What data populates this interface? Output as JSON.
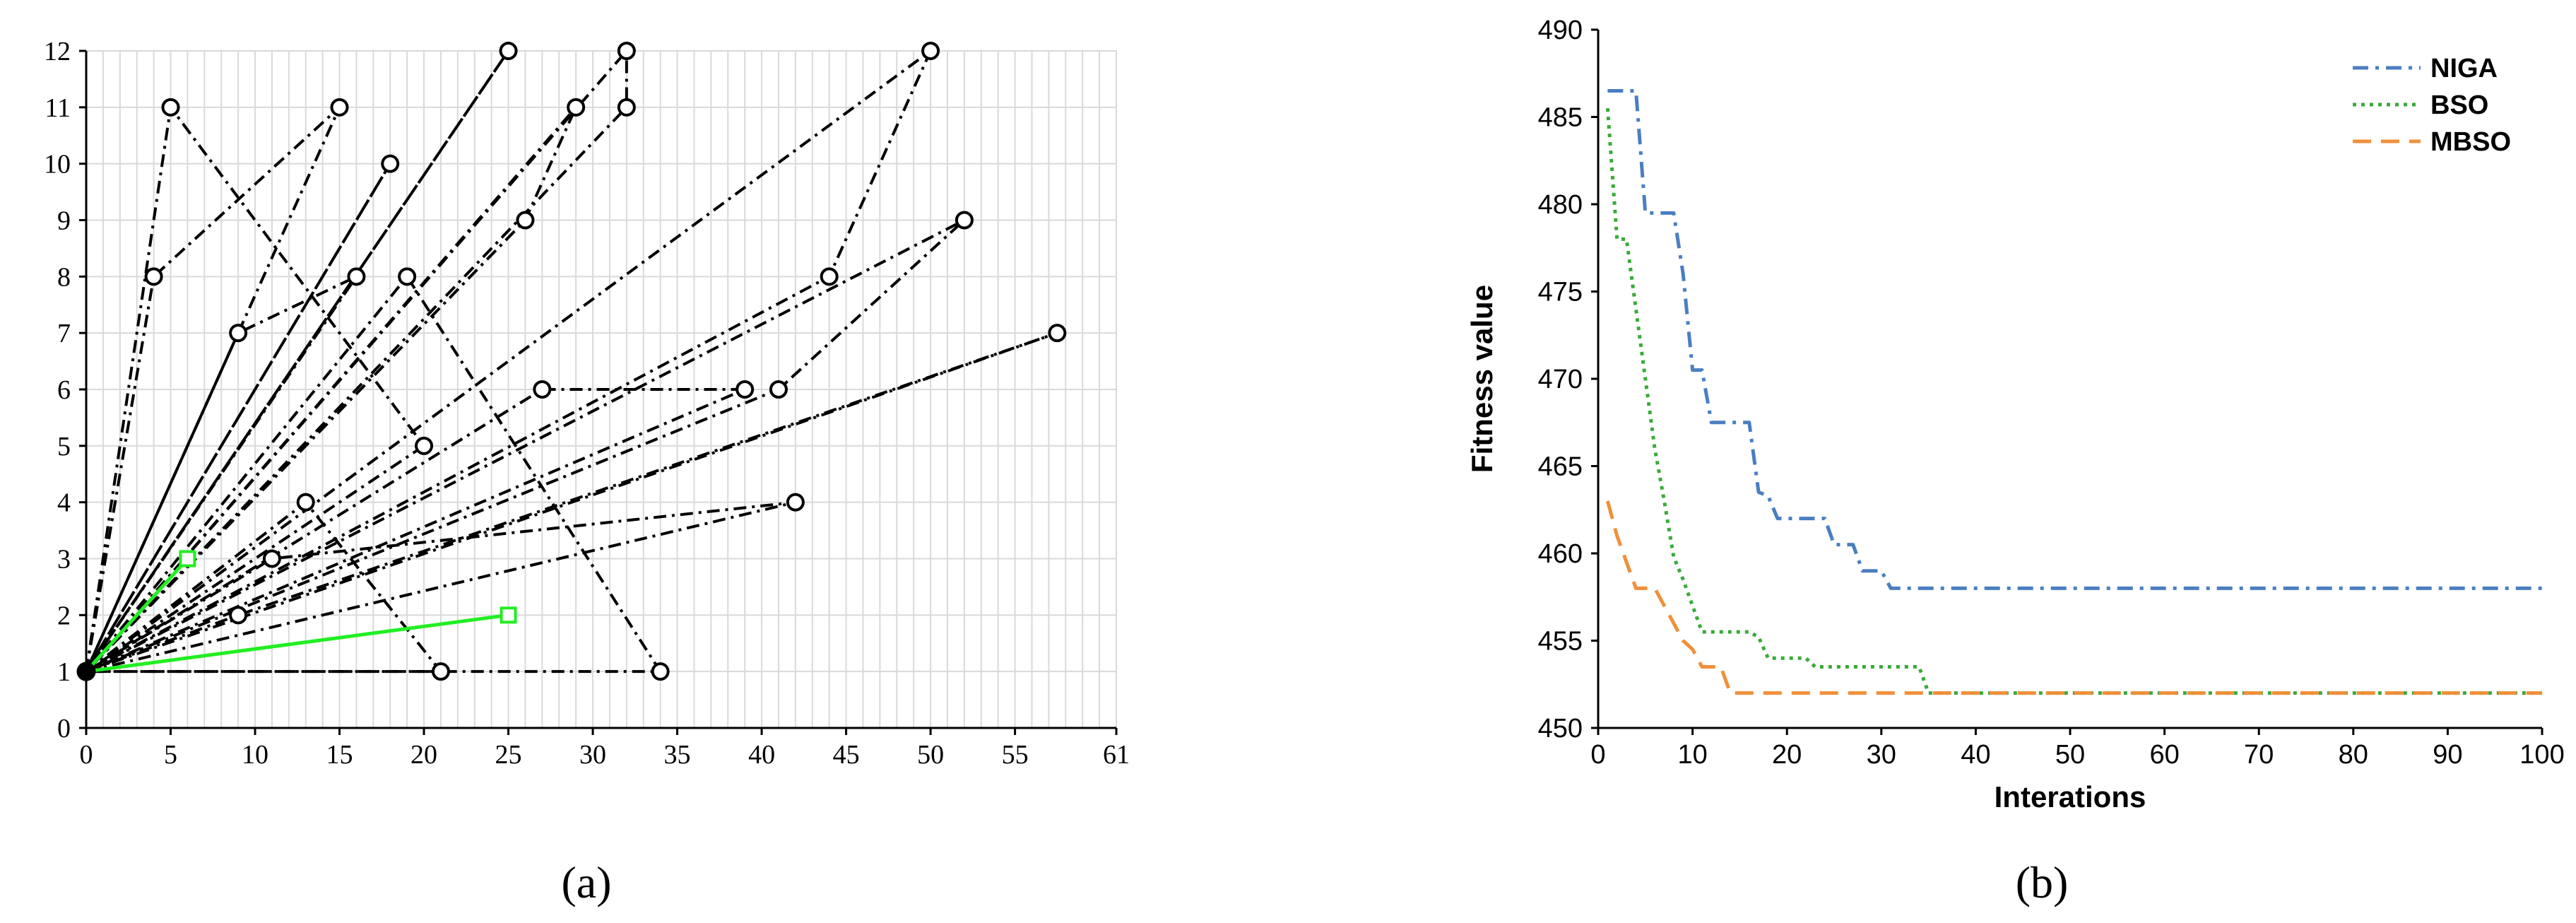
{
  "panels": {
    "a_label": "(a)",
    "b_label": "(b)"
  },
  "chart_data": [
    {
      "id": "a",
      "type": "line",
      "title": "",
      "xlabel": "",
      "ylabel": "",
      "xlim": [
        0,
        61
      ],
      "ylim": [
        0,
        12
      ],
      "xticks": [
        "0",
        "5",
        "10",
        "15",
        "20",
        "25",
        "30",
        "35",
        "40",
        "45",
        "50",
        "55",
        "61"
      ],
      "yticks": [
        "0",
        "1",
        "2",
        "3",
        "4",
        "5",
        "6",
        "7",
        "8",
        "9",
        "10",
        "11",
        "12"
      ],
      "grid": true,
      "colors": {
        "black": "#000000",
        "green": "#22ee22"
      },
      "depot": [
        0,
        1
      ],
      "routes": [
        {
          "style": "dashdot",
          "color": "black",
          "points": [
            [
              0,
              1
            ],
            [
              5,
              11
            ],
            [
              20,
              5
            ],
            [
              0,
              1
            ]
          ]
        },
        {
          "style": "dashdot",
          "color": "black",
          "points": [
            [
              0,
              1
            ],
            [
              4,
              8
            ],
            [
              15,
              11
            ],
            [
              0,
              1
            ]
          ]
        },
        {
          "style": "dashdot",
          "color": "black",
          "points": [
            [
              0,
              1
            ],
            [
              18,
              10
            ],
            [
              0,
              1
            ]
          ]
        },
        {
          "style": "dashdot",
          "color": "black",
          "points": [
            [
              0,
              1
            ],
            [
              25,
              12
            ],
            [
              0,
              1
            ]
          ]
        },
        {
          "style": "dashdot",
          "color": "black",
          "points": [
            [
              0,
              1
            ],
            [
              32,
              12
            ],
            [
              32,
              11
            ],
            [
              0,
              1
            ]
          ]
        },
        {
          "style": "dashdot",
          "color": "black",
          "points": [
            [
              0,
              1
            ],
            [
              29,
              11
            ],
            [
              26,
              9
            ],
            [
              0,
              1
            ]
          ]
        },
        {
          "style": "dashdot",
          "color": "black",
          "points": [
            [
              0,
              1
            ],
            [
              16,
              8
            ],
            [
              9,
              7
            ]
          ]
        },
        {
          "style": "solid",
          "color": "black",
          "points": [
            [
              9,
              7
            ],
            [
              0,
              1
            ]
          ]
        },
        {
          "style": "dashdot",
          "color": "black",
          "points": [
            [
              0,
              1
            ],
            [
              50,
              12
            ],
            [
              44,
              8
            ],
            [
              0,
              1
            ]
          ]
        },
        {
          "style": "dashdot",
          "color": "black",
          "points": [
            [
              0,
              1
            ],
            [
              52,
              9
            ],
            [
              41,
              6
            ],
            [
              0,
              1
            ]
          ]
        },
        {
          "style": "dashdot",
          "color": "black",
          "points": [
            [
              0,
              1
            ],
            [
              27,
              6
            ],
            [
              39,
              6
            ],
            [
              0,
              1
            ]
          ]
        },
        {
          "style": "dashdot",
          "color": "black",
          "points": [
            [
              0,
              1
            ],
            [
              57.5,
              7
            ],
            [
              9,
              2
            ],
            [
              0,
              1
            ]
          ]
        },
        {
          "style": "dashdot",
          "color": "black",
          "points": [
            [
              0,
              1
            ],
            [
              42,
              4
            ],
            [
              11,
              3
            ],
            [
              0,
              1
            ]
          ]
        },
        {
          "style": "dashdot",
          "color": "black",
          "points": [
            [
              0,
              1
            ],
            [
              13,
              4
            ],
            [
              21,
              1
            ],
            [
              0,
              1
            ]
          ]
        },
        {
          "style": "dashdot",
          "color": "black",
          "points": [
            [
              0,
              1
            ],
            [
              19,
              8
            ],
            [
              34,
              1
            ],
            [
              0,
              1
            ]
          ]
        },
        {
          "style": "solid",
          "color": "green",
          "points": [
            [
              0,
              1
            ],
            [
              6,
              3
            ],
            [
              0,
              1
            ]
          ]
        },
        {
          "style": "solid",
          "color": "green",
          "points": [
            [
              0,
              1
            ],
            [
              25,
              2
            ],
            [
              0,
              1
            ]
          ]
        }
      ],
      "customers_circle": [
        [
          5,
          11
        ],
        [
          4,
          8
        ],
        [
          15,
          11
        ],
        [
          18,
          10
        ],
        [
          25,
          12
        ],
        [
          32,
          12
        ],
        [
          32,
          11
        ],
        [
          29,
          11
        ],
        [
          26,
          9
        ],
        [
          16,
          8
        ],
        [
          9,
          7
        ],
        [
          19,
          8
        ],
        [
          50,
          12
        ],
        [
          44,
          8
        ],
        [
          52,
          9
        ],
        [
          41,
          6
        ],
        [
          27,
          6
        ],
        [
          39,
          6
        ],
        [
          57.5,
          7
        ],
        [
          20,
          5
        ],
        [
          13,
          4
        ],
        [
          42,
          4
        ],
        [
          11,
          3
        ],
        [
          9,
          2
        ],
        [
          21,
          1
        ],
        [
          34,
          1
        ],
        [
          0,
          1
        ]
      ],
      "customers_square": [
        [
          6,
          3
        ],
        [
          25,
          2
        ]
      ]
    },
    {
      "id": "b",
      "type": "line",
      "title": "",
      "xlabel": "Interations",
      "ylabel": "Fitness value",
      "xlim": [
        0,
        100
      ],
      "ylim": [
        450,
        490
      ],
      "xticks": [
        "0",
        "10",
        "20",
        "30",
        "40",
        "50",
        "60",
        "70",
        "80",
        "90",
        "100"
      ],
      "yticks": [
        "450",
        "455",
        "460",
        "465",
        "470",
        "475",
        "480",
        "485",
        "490"
      ],
      "grid": false,
      "legend_position": "top-right",
      "series": [
        {
          "name": "NIGA",
          "color": "#4a7fc1",
          "style": "dashdot",
          "x": [
            1,
            4,
            5,
            8,
            9,
            10,
            11,
            12,
            16,
            17,
            18,
            19,
            24,
            25,
            27,
            28,
            30,
            31,
            100
          ],
          "y": [
            486.5,
            486.5,
            479.5,
            479.5,
            476,
            470.5,
            470.5,
            467.5,
            467.5,
            463.5,
            463.3,
            462,
            462,
            460.5,
            460.5,
            459,
            459,
            458,
            458
          ]
        },
        {
          "name": "BSO",
          "color": "#3aaa3a",
          "style": "dotted",
          "x": [
            1,
            2,
            3,
            4,
            5,
            6,
            7,
            8,
            9,
            10,
            11,
            15,
            16,
            17,
            18,
            22,
            23,
            34,
            35,
            100
          ],
          "y": [
            485.5,
            478,
            478,
            474,
            470,
            466,
            463,
            459.8,
            458.5,
            457,
            455.5,
            455.5,
            455.5,
            455.2,
            454,
            454,
            453.5,
            453.5,
            452,
            452
          ]
        },
        {
          "name": "MBSO",
          "color": "#f0903a",
          "style": "dashed",
          "x": [
            1,
            2,
            3,
            4,
            6,
            7,
            8,
            9,
            10,
            11,
            13,
            14,
            100
          ],
          "y": [
            463,
            461,
            459.5,
            458,
            458,
            457,
            456,
            455,
            454.5,
            453.5,
            453.5,
            452,
            452
          ]
        }
      ]
    }
  ]
}
